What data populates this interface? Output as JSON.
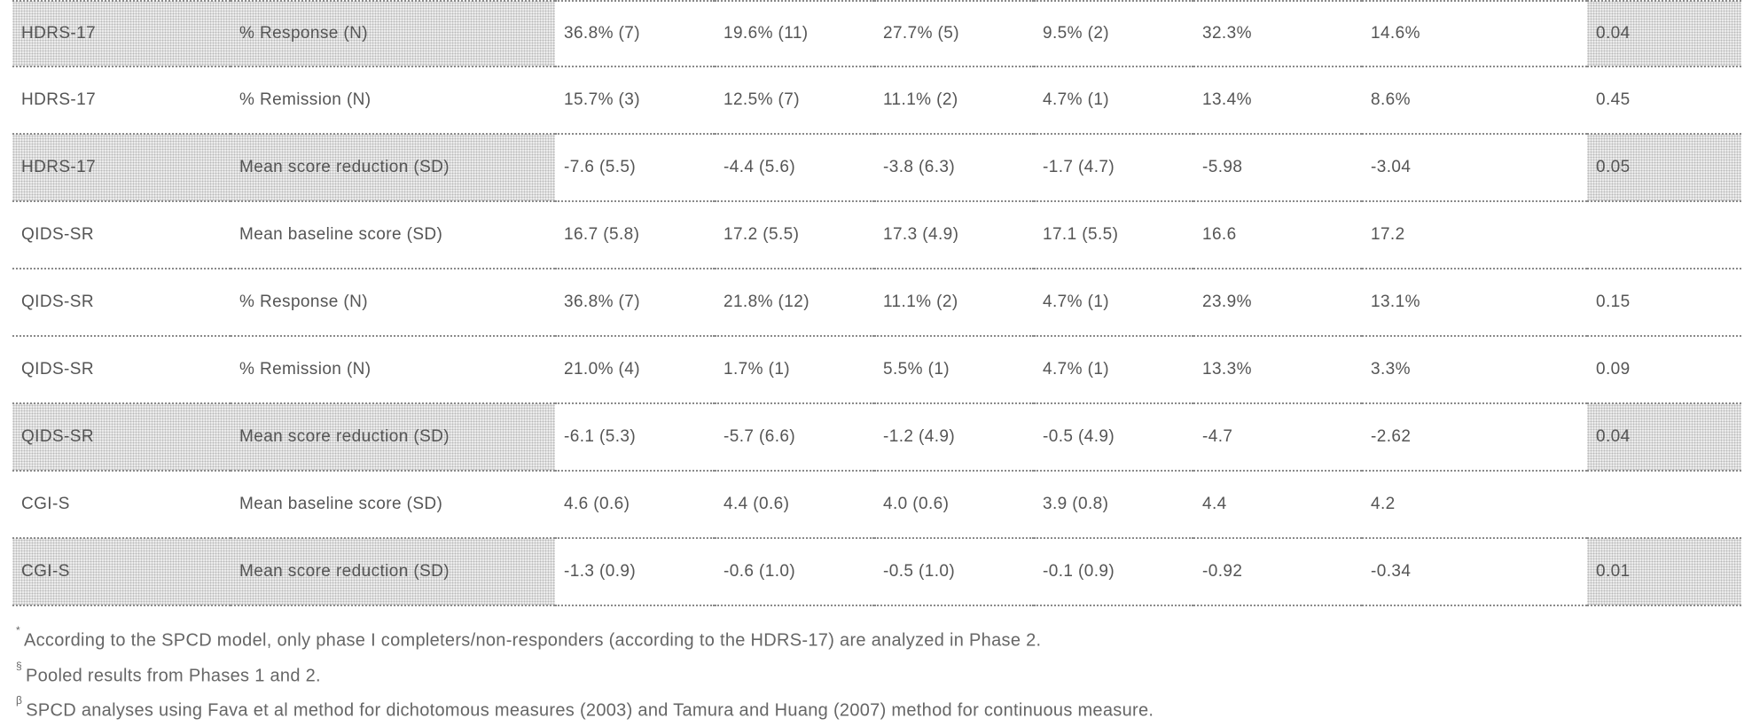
{
  "table": {
    "rows": [
      {
        "measure": "HDRS-17",
        "metric": "% Response (N)",
        "v1": "36.8% (7)",
        "v2": "19.6% (11)",
        "v3": "27.7% (5)",
        "v4": "9.5% (2)",
        "v5": "32.3%",
        "v6": "14.6%",
        "p": "0.04",
        "shaded": true
      },
      {
        "measure": "HDRS-17",
        "metric": "% Remission (N)",
        "v1": "15.7% (3)",
        "v2": "12.5% (7)",
        "v3": "11.1% (2)",
        "v4": "4.7% (1)",
        "v5": "13.4%",
        "v6": "8.6%",
        "p": "0.45",
        "shaded": false
      },
      {
        "measure": "HDRS-17",
        "metric": "Mean score reduction (SD)",
        "v1": "-7.6 (5.5)",
        "v2": "-4.4 (5.6)",
        "v3": "-3.8 (6.3)",
        "v4": "-1.7 (4.7)",
        "v5": "-5.98",
        "v6": "-3.04",
        "p": "0.05",
        "shaded": true
      },
      {
        "measure": "QIDS-SR",
        "metric": "Mean baseline score (SD)",
        "v1": "16.7 (5.8)",
        "v2": "17.2 (5.5)",
        "v3": "17.3 (4.9)",
        "v4": "17.1 (5.5)",
        "v5": "16.6",
        "v6": "17.2",
        "p": "",
        "shaded": false
      },
      {
        "measure": "QIDS-SR",
        "metric": "% Response (N)",
        "v1": "36.8% (7)",
        "v2": "21.8% (12)",
        "v3": "11.1% (2)",
        "v4": "4.7% (1)",
        "v5": "23.9%",
        "v6": "13.1%",
        "p": "0.15",
        "shaded": false
      },
      {
        "measure": "QIDS-SR",
        "metric": "% Remission (N)",
        "v1": "21.0% (4)",
        "v2": "1.7% (1)",
        "v3": "5.5% (1)",
        "v4": "4.7% (1)",
        "v5": "13.3%",
        "v6": "3.3%",
        "p": "0.09",
        "shaded": false
      },
      {
        "measure": "QIDS-SR",
        "metric": "Mean score reduction (SD)",
        "v1": "-6.1 (5.3)",
        "v2": "-5.7 (6.6)",
        "v3": "-1.2 (4.9)",
        "v4": "-0.5 (4.9)",
        "v5": "-4.7",
        "v6": "-2.62",
        "p": "0.04",
        "shaded": true
      },
      {
        "measure": "CGI-S",
        "metric": "Mean baseline score (SD)",
        "v1": "4.6 (0.6)",
        "v2": "4.4 (0.6)",
        "v3": "4.0 (0.6)",
        "v4": "3.9 (0.8)",
        "v5": "4.4",
        "v6": "4.2",
        "p": "",
        "shaded": false
      },
      {
        "measure": "CGI-S",
        "metric": "Mean score reduction (SD)",
        "v1": "-1.3 (0.9)",
        "v2": "-0.6 (1.0)",
        "v3": "-0.5 (1.0)",
        "v4": "-0.1 (0.9)",
        "v5": "-0.92",
        "v6": "-0.34",
        "p": "0.01",
        "shaded": true
      }
    ]
  },
  "footnotes": [
    {
      "mark": "*",
      "text": "According to the SPCD model, only phase I completers/non-responders (according to the HDRS-17) are analyzed in Phase 2."
    },
    {
      "mark": "§",
      "text": "Pooled results from Phases 1 and 2."
    },
    {
      "mark": "β",
      "text": "SPCD analyses using Fava et al method for dichotomous measures (2003) and Tamura and Huang (2007) method for continuous measure."
    }
  ]
}
